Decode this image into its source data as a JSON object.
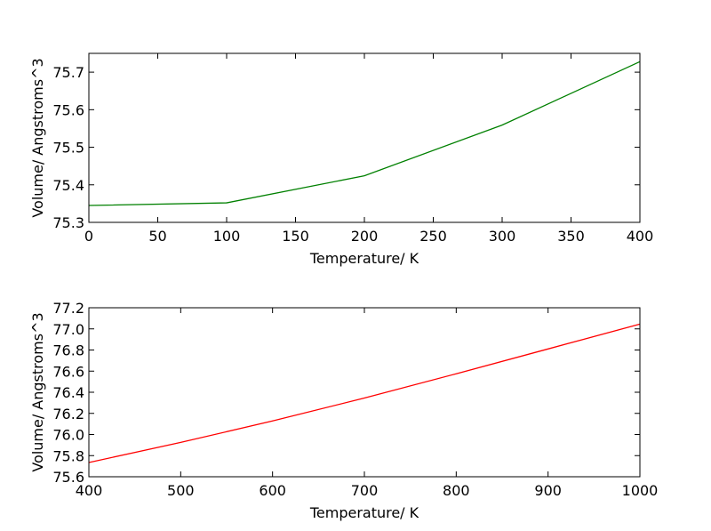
{
  "chart_data": [
    {
      "type": "line",
      "title": "",
      "xlabel": "Temperature/ K",
      "ylabel": "Volume/ Angstroms^3",
      "xlim": [
        0,
        400
      ],
      "ylim": [
        75.3,
        75.75
      ],
      "xticks": [
        "0",
        "50",
        "100",
        "150",
        "200",
        "250",
        "300",
        "350",
        "400"
      ],
      "yticks": [
        "75.3",
        "75.4",
        "75.5",
        "75.6",
        "75.7"
      ],
      "grid": false,
      "series": [
        {
          "color": "#008000",
          "x": [
            0,
            100,
            200,
            300,
            400
          ],
          "y": [
            75.345,
            75.352,
            75.424,
            75.559,
            75.728
          ]
        }
      ]
    },
    {
      "type": "line",
      "title": "",
      "xlabel": "Temperature/ K",
      "ylabel": "Volume/ Angstroms^3",
      "xlim": [
        400,
        1000
      ],
      "ylim": [
        75.6,
        77.2
      ],
      "xticks": [
        "400",
        "500",
        "600",
        "700",
        "800",
        "900",
        "1000"
      ],
      "yticks": [
        "75.6",
        "75.8",
        "76.0",
        "76.2",
        "76.4",
        "76.6",
        "76.8",
        "77.0",
        "77.2"
      ],
      "grid": false,
      "series": [
        {
          "color": "#ff0000",
          "x": [
            400,
            500,
            600,
            700,
            800,
            900,
            1000
          ],
          "y": [
            75.735,
            75.925,
            76.128,
            76.345,
            76.575,
            76.81,
            77.045
          ]
        }
      ]
    }
  ]
}
